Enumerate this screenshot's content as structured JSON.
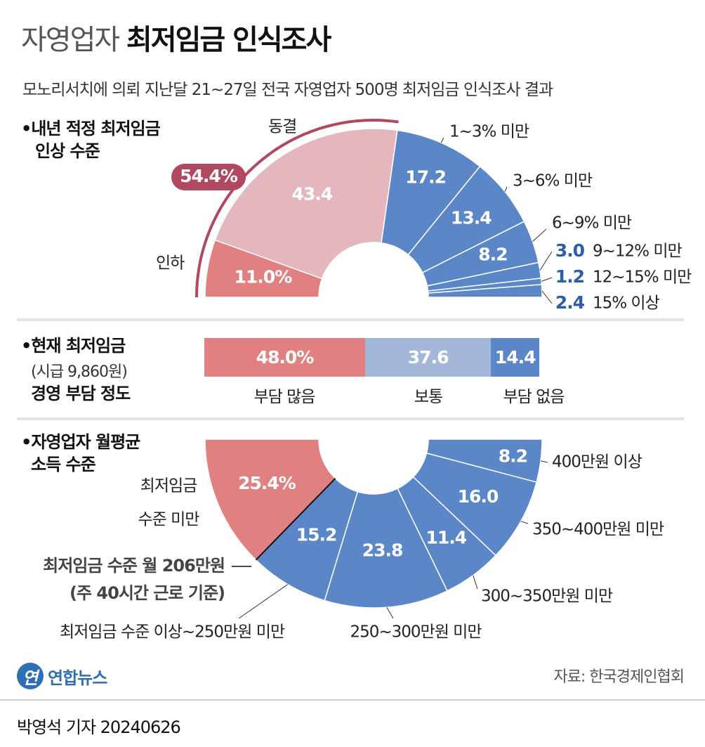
{
  "header": {
    "title_light": "자영업자",
    "title_bold": "최저임금 인식조사",
    "subtitle": "모노리서치에 의뢰 지난달 21~27일 전국 자영업자 500명 최저임금 인식조사 결과"
  },
  "sections": {
    "s1_line1": "•내년 적정 최저임금",
    "s1_line2": "인상 수준",
    "s2_line1": "•현재 최저임금",
    "s2_line2": "(시급 9,860원)",
    "s2_line3": "경영 부담 정도",
    "s3_line1": "•자영업자 월평균",
    "s3_line2": "소득 수준"
  },
  "colors": {
    "pink_light": "#e4b7bf",
    "red": "#e08080",
    "blue": "#5b87c9",
    "blue_light": "#a3b8d9",
    "bracket": "#b24860",
    "value_blue": "#2f5ea8"
  },
  "chart_data": [
    {
      "type": "pie",
      "subtype": "half-donut",
      "title": "내년 적정 최저임금 인상 수준",
      "unit": "%",
      "slices": [
        {
          "label": "인하",
          "value": 11.0,
          "display": "11.0%",
          "color": "#e08080"
        },
        {
          "label": "동결",
          "value": 43.4,
          "display": "43.4",
          "color": "#e4b7bf"
        },
        {
          "label": "1~3% 미만",
          "value": 17.2,
          "display": "17.2",
          "color": "#5b87c9"
        },
        {
          "label": "3~6% 미만",
          "value": 13.4,
          "display": "13.4",
          "color": "#5b87c9"
        },
        {
          "label": "6~9% 미만",
          "value": 8.2,
          "display": "8.2",
          "color": "#5b87c9"
        },
        {
          "label": "9~12% 미만",
          "value": 3.0,
          "display": "3.0",
          "color": "#5b87c9"
        },
        {
          "label": "12~15% 미만",
          "value": 1.2,
          "display": "1.2",
          "color": "#5b87c9"
        },
        {
          "label": "15% 이상",
          "value": 2.4,
          "display": "2.4",
          "color": "#5b87c9"
        }
      ],
      "annotation": {
        "text": "54.4%",
        "covers": [
          "인하",
          "동결"
        ]
      }
    },
    {
      "type": "bar",
      "subtype": "stacked-100",
      "title": "현재 최저임금 (시급 9,860원) 경영 부담 정도",
      "unit": "%",
      "segments": [
        {
          "label": "부담 많음",
          "value": 48.0,
          "display": "48.0%",
          "color": "#e08080"
        },
        {
          "label": "보통",
          "value": 37.6,
          "display": "37.6",
          "color": "#a3b8d9"
        },
        {
          "label": "부담 없음",
          "value": 14.4,
          "display": "14.4",
          "color": "#5b87c9"
        }
      ]
    },
    {
      "type": "pie",
      "subtype": "half-donut",
      "title": "자영업자 월평균 소득 수준",
      "unit": "%",
      "slices": [
        {
          "label": "400만원 이상",
          "value": 8.2,
          "display": "8.2",
          "color": "#5b87c9"
        },
        {
          "label": "350~400만원 미만",
          "value": 16.0,
          "display": "16.0",
          "color": "#5b87c9"
        },
        {
          "label": "300~350만원 미만",
          "value": 11.4,
          "display": "11.4",
          "color": "#5b87c9"
        },
        {
          "label": "250~300만원 미만",
          "value": 23.8,
          "display": "23.8",
          "color": "#5b87c9"
        },
        {
          "label": "최저임금 수준 이상~250만원 미만",
          "value": 15.2,
          "display": "15.2",
          "color": "#5b87c9"
        },
        {
          "label": "최저임금 수준 미만",
          "value": 25.4,
          "display": "25.4%",
          "color": "#e08080"
        }
      ],
      "annotation": {
        "line1": "최저임금 수준 월 206만원",
        "line2": "(주 40시간 근로 기준)"
      }
    }
  ],
  "footer": {
    "logo_mark": "연",
    "logo_text": "연합뉴스",
    "source": "자료: 한국경제인협회",
    "byline": "박영석 기자  20240626"
  }
}
